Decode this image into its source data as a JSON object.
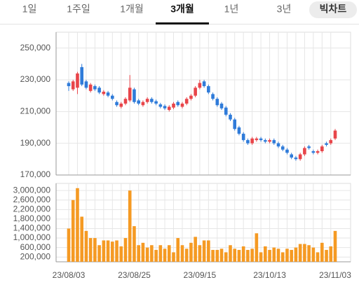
{
  "tabs": [
    "1일",
    "1주일",
    "1개월",
    "3개월",
    "1년",
    "3년"
  ],
  "active_tab": 3,
  "button": "빅차트",
  "chart_data": [
    {
      "type": "candlestick",
      "up_color": "#e8454a",
      "down_color": "#2f7bd9",
      "grid": true,
      "categories": [
        "23/08/03",
        null,
        null,
        null,
        null,
        null,
        null,
        null,
        null,
        null,
        null,
        null,
        null,
        null,
        null,
        "23/08/25",
        null,
        null,
        null,
        null,
        null,
        null,
        null,
        null,
        null,
        null,
        null,
        null,
        null,
        null,
        "23/09/15",
        null,
        null,
        null,
        null,
        null,
        null,
        null,
        null,
        null,
        null,
        null,
        null,
        null,
        null,
        null,
        "23/10/13",
        null,
        null,
        null,
        null,
        null,
        null,
        null,
        null,
        null,
        null,
        null,
        null,
        null,
        null,
        "23/11/03"
      ],
      "open": [
        228000,
        224000,
        225000,
        238000,
        229000,
        223000,
        226000,
        225000,
        221000,
        222000,
        220000,
        216000,
        213000,
        215000,
        217000,
        224000,
        217000,
        214000,
        216000,
        218000,
        216500,
        214500,
        213500,
        211000,
        212500,
        216000,
        213000,
        215000,
        218000,
        220000,
        225000,
        229000,
        226000,
        221000,
        218000,
        215000,
        212500,
        208000,
        205000,
        200000,
        196000,
        192000,
        190000,
        192000,
        193000,
        192000,
        191000,
        192000,
        190000,
        188000,
        186000,
        183000,
        181000,
        180000,
        183000,
        188000,
        185000,
        184000,
        185000,
        190000,
        190000,
        193000
      ],
      "high": [
        229000,
        230000,
        235000,
        240000,
        230000,
        228000,
        227000,
        226000,
        223500,
        223000,
        221000,
        217000,
        216000,
        219000,
        233000,
        225000,
        218000,
        217000,
        219000,
        219000,
        217500,
        215500,
        214500,
        214000,
        216000,
        217000,
        216000,
        219000,
        221000,
        226000,
        230000,
        230000,
        227000,
        222000,
        219000,
        216000,
        213500,
        209000,
        206000,
        201000,
        197000,
        193000,
        194000,
        194000,
        194000,
        193000,
        193000,
        193000,
        191000,
        189000,
        187000,
        184000,
        182000,
        184000,
        188000,
        189000,
        186000,
        186000,
        189000,
        191000,
        193000,
        199000
      ],
      "low": [
        223000,
        223000,
        221000,
        226000,
        224000,
        222000,
        223000,
        221000,
        220000,
        219000,
        217000,
        213000,
        212000,
        214000,
        216000,
        215000,
        214000,
        213000,
        215000,
        215000,
        214000,
        212000,
        211000,
        210000,
        211500,
        213000,
        212000,
        214000,
        217000,
        219000,
        224000,
        225000,
        221000,
        217000,
        213000,
        211000,
        207000,
        204000,
        198000,
        195000,
        191000,
        189000,
        189000,
        191000,
        191000,
        190000,
        190000,
        189000,
        187000,
        185000,
        183000,
        180000,
        179000,
        179000,
        182000,
        186000,
        183000,
        183000,
        184000,
        188000,
        189000,
        192000
      ],
      "close": [
        226000,
        229000,
        234000,
        227000,
        225000,
        227000,
        224000,
        222000,
        222500,
        220000,
        218000,
        214000,
        215000,
        218000,
        225000,
        216000,
        215000,
        216000,
        218000,
        216000,
        215000,
        213000,
        212000,
        213000,
        215000,
        214000,
        215000,
        218000,
        220000,
        225000,
        228000,
        226000,
        222000,
        218000,
        214000,
        212000,
        208000,
        205000,
        199000,
        196000,
        192000,
        190000,
        193000,
        193000,
        192000,
        191000,
        192000,
        190000,
        188000,
        186000,
        184000,
        181000,
        180000,
        183000,
        187000,
        187000,
        184000,
        185000,
        188000,
        189000,
        192000,
        198000
      ],
      "ylim": [
        170000,
        260000
      ],
      "yticks": [
        {
          "value": 170000,
          "label": "170,000"
        },
        {
          "value": 190000,
          "label": "190,000"
        },
        {
          "value": 210000,
          "label": "210,000"
        },
        {
          "value": 230000,
          "label": "230,000"
        },
        {
          "value": 250000,
          "label": "250,000"
        }
      ]
    },
    {
      "type": "bar",
      "color": "#f59a23",
      "grid": true,
      "values": [
        1400000,
        2600000,
        3100000,
        1900000,
        1300000,
        1000000,
        1000000,
        700000,
        900000,
        900000,
        850000,
        900000,
        650000,
        1000000,
        3000000,
        1500000,
        700000,
        800000,
        600000,
        700000,
        500000,
        700000,
        550000,
        700000,
        400000,
        1000000,
        700000,
        550000,
        800000,
        1050000,
        700000,
        900000,
        900000,
        500000,
        500000,
        550000,
        400000,
        700000,
        550000,
        500000,
        650000,
        500000,
        550000,
        1200000,
        400000,
        650000,
        500000,
        600000,
        550000,
        400000,
        550000,
        500000,
        600000,
        750000,
        750000,
        700000,
        600000,
        400000,
        800000,
        500000,
        650000,
        1300000
      ],
      "ylim": [
        0,
        3300000
      ],
      "yticks": [
        {
          "value": 200000,
          "label": "200,000"
        },
        {
          "value": 600000,
          "label": "600,000"
        },
        {
          "value": 1000000,
          "label": "1,000,000"
        },
        {
          "value": 1400000,
          "label": "1,400,000"
        },
        {
          "value": 1800000,
          "label": "1,800,000"
        },
        {
          "value": 2200000,
          "label": "2,200,000"
        },
        {
          "value": 2600000,
          "label": "2,600,000"
        },
        {
          "value": 3000000,
          "label": "3,000,000"
        }
      ]
    }
  ]
}
